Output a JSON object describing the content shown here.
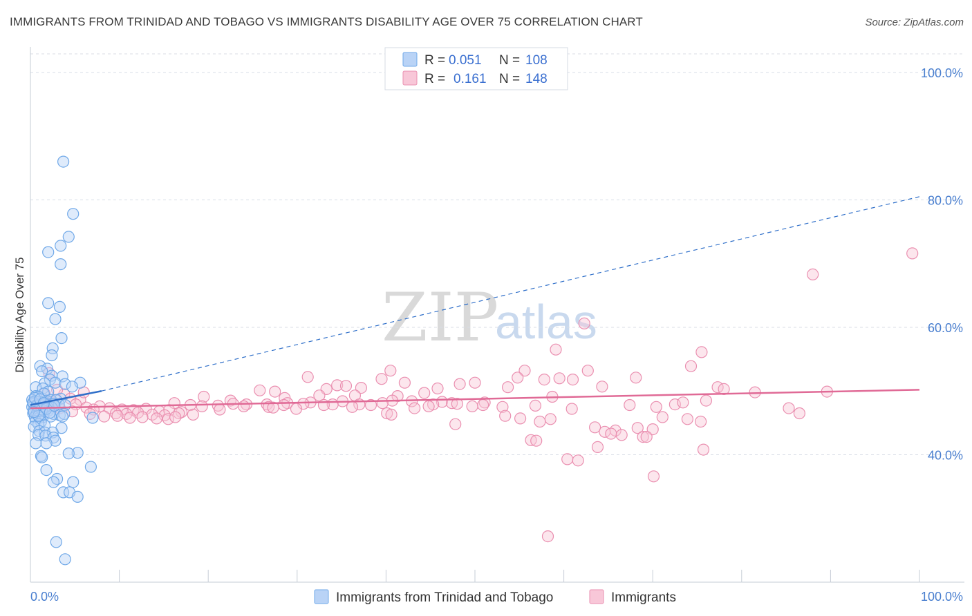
{
  "header": {
    "title": "IMMIGRANTS FROM TRINIDAD AND TOBAGO VS IMMIGRANTS DISABILITY AGE OVER 75 CORRELATION CHART",
    "source": "Source: ZipAtlas.com"
  },
  "watermark": {
    "zip": "ZIP",
    "atlas": "atlas"
  },
  "colors": {
    "blue": "#6fa8e8",
    "blue_fill": "#b9d3f6",
    "blue_line": "#2f6fc9",
    "pink": "#ea8fb0",
    "pink_fill": "#f8c7d8",
    "pink_line": "#e06a96",
    "grid": "#d8dde6",
    "tick_text": "#4a7fcf"
  },
  "legend_top": {
    "rows": [
      {
        "r_label": "R =",
        "r_value": "0.051",
        "n_label": "N =",
        "n_value": "108"
      },
      {
        "r_label": "R =",
        "r_value": "0.161",
        "n_label": "N =",
        "n_value": "148"
      }
    ]
  },
  "legend_bottom": {
    "items": [
      {
        "label": "Immigrants from Trinidad and Tobago"
      },
      {
        "label": "Immigrants"
      }
    ]
  },
  "chart_data": {
    "type": "scatter",
    "title": "IMMIGRANTS FROM TRINIDAD AND TOBAGO VS IMMIGRANTS DISABILITY AGE OVER 75 CORRELATION CHART",
    "xlabel": "",
    "ylabel": "Disability Age Over 75",
    "xlim": [
      0,
      100
    ],
    "ylim": [
      20,
      104
    ],
    "x_tick_labels": [
      "0.0%",
      "100.0%"
    ],
    "y_ticks": [
      40,
      60,
      80,
      100
    ],
    "y_tick_labels": [
      "40.0%",
      "60.0%",
      "80.0%",
      "100.0%"
    ],
    "grid": true,
    "legend_position": "top-center",
    "series": [
      {
        "name": "Immigrants from Trinidad and Tobago",
        "R": 0.051,
        "N": 108,
        "trend": {
          "x": [
            0,
            8
          ],
          "y": [
            47.8,
            50
          ],
          "dashed_extension_to": [
            100,
            80.5
          ]
        },
        "points": [
          [
            3.7,
            86
          ],
          [
            4.8,
            77.8
          ],
          [
            4.3,
            74.2
          ],
          [
            3.4,
            72.8
          ],
          [
            2,
            71.8
          ],
          [
            3.4,
            69.9
          ],
          [
            2,
            63.8
          ],
          [
            3.3,
            63.2
          ],
          [
            2.8,
            61.3
          ],
          [
            3.5,
            58.3
          ],
          [
            2.5,
            56.7
          ],
          [
            2.4,
            55.6
          ],
          [
            1.1,
            53.9
          ],
          [
            1.9,
            53.5
          ],
          [
            1.3,
            53.1
          ],
          [
            3.6,
            52.3
          ],
          [
            2.4,
            52.4
          ],
          [
            2.2,
            51.8
          ],
          [
            2.8,
            51.3
          ],
          [
            1.6,
            51.2
          ],
          [
            3.9,
            51.1
          ],
          [
            5.6,
            51.3
          ],
          [
            4.7,
            50.7
          ],
          [
            0.6,
            50.6
          ],
          [
            1.4,
            50.4
          ],
          [
            2,
            49.9
          ],
          [
            1.5,
            49.6
          ],
          [
            0.6,
            49.2
          ],
          [
            0.9,
            49.1
          ],
          [
            3.4,
            48.8
          ],
          [
            0.2,
            48.6
          ],
          [
            0.5,
            48.4
          ],
          [
            1,
            48.3
          ],
          [
            1.8,
            48.5
          ],
          [
            2.3,
            48.6
          ],
          [
            2.9,
            48.6
          ],
          [
            0.3,
            48
          ],
          [
            0.8,
            47.9
          ],
          [
            1.2,
            47.8
          ],
          [
            1.6,
            48
          ],
          [
            2.1,
            47.9
          ],
          [
            2.6,
            48
          ],
          [
            3.2,
            47.9
          ],
          [
            3.9,
            47.8
          ],
          [
            0.2,
            47.5
          ],
          [
            0.6,
            47.4
          ],
          [
            1,
            47.4
          ],
          [
            1.4,
            47.3
          ],
          [
            1.9,
            47.5
          ],
          [
            2.4,
            47.4
          ],
          [
            0.4,
            47
          ],
          [
            0.8,
            46.9
          ],
          [
            1.2,
            47
          ],
          [
            1.6,
            46.8
          ],
          [
            2,
            46.9
          ],
          [
            0.3,
            46.5
          ],
          [
            0.7,
            46.4
          ],
          [
            1.1,
            46.5
          ],
          [
            1.5,
            46.3
          ],
          [
            2.6,
            46.4
          ],
          [
            3.3,
            46.2
          ],
          [
            3.8,
            46.4
          ],
          [
            0.5,
            45.9
          ],
          [
            1,
            45.8
          ],
          [
            1.4,
            45.9
          ],
          [
            2.3,
            46
          ],
          [
            3.6,
            46
          ],
          [
            7,
            45.8
          ],
          [
            0.6,
            45.3
          ],
          [
            1.2,
            45.2
          ],
          [
            0.9,
            44.8
          ],
          [
            1.6,
            44.6
          ],
          [
            0.4,
            44.4
          ],
          [
            3.5,
            44.2
          ],
          [
            1,
            43.7
          ],
          [
            1.6,
            43.5
          ],
          [
            2.5,
            43.5
          ],
          [
            0.9,
            43.1
          ],
          [
            1.7,
            43
          ],
          [
            2.6,
            42.7
          ],
          [
            2.8,
            42.2
          ],
          [
            0.6,
            41.8
          ],
          [
            1.8,
            41.8
          ],
          [
            5.3,
            40.3
          ],
          [
            4.3,
            40.2
          ],
          [
            1.2,
            39.8
          ],
          [
            1.3,
            39.6
          ],
          [
            6.8,
            38.1
          ],
          [
            1.8,
            37.6
          ],
          [
            3,
            36.2
          ],
          [
            2.6,
            35.7
          ],
          [
            4.8,
            35.7
          ],
          [
            3.7,
            34.1
          ],
          [
            4.4,
            34.1
          ],
          [
            5.3,
            33.4
          ],
          [
            2.9,
            26.3
          ],
          [
            3.9,
            23.6
          ],
          [
            0.3,
            48.2
          ],
          [
            1.3,
            47.1
          ],
          [
            0.7,
            47.7
          ],
          [
            1.8,
            47.2
          ],
          [
            2.2,
            46.6
          ],
          [
            0.5,
            48.9
          ],
          [
            1.1,
            48.7
          ],
          [
            0.9,
            46.1
          ],
          [
            1.5,
            48.1
          ],
          [
            2.7,
            47.7
          ],
          [
            0.4,
            46.7
          ]
        ]
      },
      {
        "name": "Immigrants",
        "R": 0.161,
        "N": 148,
        "trend": {
          "x": [
            0,
            100
          ],
          "y": [
            47.3,
            50.2
          ]
        },
        "points": [
          [
            99.2,
            71.6
          ],
          [
            88,
            68.3
          ],
          [
            62.3,
            60.6
          ],
          [
            59.1,
            56.5
          ],
          [
            75.5,
            56.1
          ],
          [
            74.3,
            53.9
          ],
          [
            40.5,
            53.2
          ],
          [
            62.7,
            53.2
          ],
          [
            55.6,
            53.2
          ],
          [
            61,
            51.8
          ],
          [
            57.8,
            51.8
          ],
          [
            59.5,
            52
          ],
          [
            68.1,
            52.1
          ],
          [
            54.8,
            52.1
          ],
          [
            31.2,
            52.2
          ],
          [
            39.5,
            51.9
          ],
          [
            48.3,
            51.1
          ],
          [
            50,
            51.3
          ],
          [
            34.5,
            50.9
          ],
          [
            35.5,
            50.8
          ],
          [
            42.1,
            51.3
          ],
          [
            53.7,
            50.6
          ],
          [
            64.3,
            50.7
          ],
          [
            45.8,
            50.4
          ],
          [
            37.2,
            50.5
          ],
          [
            25.8,
            50.1
          ],
          [
            27.5,
            49.9
          ],
          [
            33.3,
            50.3
          ],
          [
            44.3,
            49.7
          ],
          [
            81.5,
            49.8
          ],
          [
            19.5,
            49.1
          ],
          [
            28.6,
            48.9
          ],
          [
            58.7,
            49.1
          ],
          [
            32.5,
            49.3
          ],
          [
            36.5,
            49.3
          ],
          [
            41.3,
            49.2
          ],
          [
            22.5,
            48.5
          ],
          [
            31.5,
            48.2
          ],
          [
            35.1,
            48.4
          ],
          [
            40.7,
            48.5
          ],
          [
            39.6,
            48.1
          ],
          [
            46.3,
            48.3
          ],
          [
            47.4,
            48.1
          ],
          [
            51.1,
            48.2
          ],
          [
            16.2,
            48.1
          ],
          [
            22.8,
            48
          ],
          [
            24.3,
            47.9
          ],
          [
            26.6,
            47.9
          ],
          [
            28.9,
            48.1
          ],
          [
            30.7,
            48
          ],
          [
            34,
            47.9
          ],
          [
            37,
            47.9
          ],
          [
            42.9,
            48.4
          ],
          [
            45.3,
            47.9
          ],
          [
            48,
            48
          ],
          [
            50.9,
            47.8
          ],
          [
            18,
            47.8
          ],
          [
            21.1,
            47.7
          ],
          [
            19.3,
            47.6
          ],
          [
            26.8,
            47.5
          ],
          [
            28.5,
            47.8
          ],
          [
            24,
            47.6
          ],
          [
            27.3,
            47.4
          ],
          [
            33,
            47.8
          ],
          [
            36.2,
            47.5
          ],
          [
            44.8,
            47.6
          ],
          [
            43.2,
            47.3
          ],
          [
            49.7,
            47.6
          ],
          [
            53.1,
            47.5
          ],
          [
            56.8,
            47.7
          ],
          [
            60.9,
            47.2
          ],
          [
            70.4,
            47.5
          ],
          [
            72.5,
            47.9
          ],
          [
            7.8,
            47.6
          ],
          [
            8.9,
            47.3
          ],
          [
            10.3,
            47.1
          ],
          [
            11.6,
            47
          ],
          [
            13,
            47.2
          ],
          [
            14.5,
            46.8
          ],
          [
            15.6,
            47
          ],
          [
            17,
            46.7
          ],
          [
            9.6,
            46.5
          ],
          [
            10.8,
            46.4
          ],
          [
            12.1,
            46.6
          ],
          [
            13.7,
            46.3
          ],
          [
            15.1,
            46.2
          ],
          [
            16.7,
            46.5
          ],
          [
            18.3,
            46.3
          ],
          [
            8.3,
            46
          ],
          [
            9.8,
            46.1
          ],
          [
            11.2,
            45.8
          ],
          [
            12.6,
            45.9
          ],
          [
            14.2,
            45.7
          ],
          [
            15.5,
            45.6
          ],
          [
            16.3,
            45.9
          ],
          [
            40.1,
            46.5
          ],
          [
            40.6,
            46.3
          ],
          [
            53.4,
            46.1
          ],
          [
            55.1,
            45.7
          ],
          [
            47.8,
            44.8
          ],
          [
            58.5,
            45.6
          ],
          [
            57.3,
            45.2
          ],
          [
            71.1,
            45.9
          ],
          [
            73.9,
            45.6
          ],
          [
            75.4,
            45.2
          ],
          [
            63.5,
            44.3
          ],
          [
            68.3,
            44.2
          ],
          [
            70,
            44
          ],
          [
            65.8,
            43.8
          ],
          [
            64.6,
            43.6
          ],
          [
            65.3,
            43.3
          ],
          [
            66.5,
            43.1
          ],
          [
            68.9,
            42.8
          ],
          [
            69.3,
            42.8
          ],
          [
            63.8,
            41.2
          ],
          [
            56.3,
            42.3
          ],
          [
            56.9,
            42.2
          ],
          [
            75.7,
            40.8
          ],
          [
            60.4,
            39.3
          ],
          [
            61.6,
            39.1
          ],
          [
            70.1,
            36.6
          ],
          [
            58.2,
            27.2
          ],
          [
            89.6,
            49.9
          ],
          [
            77.3,
            50.6
          ],
          [
            78,
            50.3
          ],
          [
            85.3,
            47.3
          ],
          [
            86.5,
            46.5
          ],
          [
            76,
            48.5
          ],
          [
            73.4,
            48.2
          ],
          [
            67.4,
            47.8
          ],
          [
            2.1,
            52.8
          ],
          [
            3.8,
            49.5
          ],
          [
            5.6,
            48.6
          ],
          [
            6.3,
            47.4
          ],
          [
            1.6,
            49.6
          ],
          [
            4.5,
            48.8
          ],
          [
            7.1,
            47.1
          ],
          [
            2.6,
            48.2
          ],
          [
            3.3,
            47.3
          ],
          [
            6.7,
            46.4
          ],
          [
            5.1,
            47.9
          ],
          [
            4.7,
            46.8
          ],
          [
            1.9,
            48.4
          ],
          [
            3,
            50.2
          ],
          [
            6,
            49.8
          ],
          [
            21.3,
            47.1
          ],
          [
            29.9,
            47.2
          ],
          [
            38.3,
            47.8
          ]
        ]
      }
    ]
  }
}
